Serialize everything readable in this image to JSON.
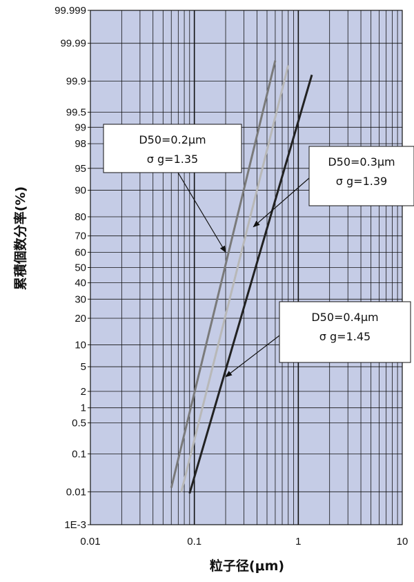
{
  "chart_data": {
    "type": "line",
    "xlabel": "粒子径(μm)",
    "ylabel": "累積個数分率(%)",
    "x_scale": "log",
    "y_scale": "log-normal probability",
    "xlim": [
      0.01,
      10
    ],
    "ylim": [
      0.001,
      99.999
    ],
    "x_ticks": [
      {
        "value": 0.01,
        "label": "0.01"
      },
      {
        "value": 0.1,
        "label": "0.1"
      },
      {
        "value": 1,
        "label": "1"
      },
      {
        "value": 10,
        "label": "10"
      }
    ],
    "y_ticks": [
      {
        "value": 0.001,
        "label": "1E-3"
      },
      {
        "value": 0.01,
        "label": "0.01"
      },
      {
        "value": 0.1,
        "label": "0.1"
      },
      {
        "value": 0.5,
        "label": "0.5"
      },
      {
        "value": 1,
        "label": "1"
      },
      {
        "value": 2,
        "label": "2"
      },
      {
        "value": 5,
        "label": "5"
      },
      {
        "value": 10,
        "label": "10"
      },
      {
        "value": 20,
        "label": "20"
      },
      {
        "value": 30,
        "label": "30"
      },
      {
        "value": 40,
        "label": "40"
      },
      {
        "value": 50,
        "label": "50"
      },
      {
        "value": 60,
        "label": "60"
      },
      {
        "value": 70,
        "label": "70"
      },
      {
        "value": 80,
        "label": "80"
      },
      {
        "value": 90,
        "label": "90"
      },
      {
        "value": 95,
        "label": "95"
      },
      {
        "value": 98,
        "label": "98"
      },
      {
        "value": 99,
        "label": "99"
      },
      {
        "value": 99.5,
        "label": "99.5"
      },
      {
        "value": 99.9,
        "label": "99.9"
      },
      {
        "value": 99.99,
        "label": "99.99"
      },
      {
        "value": 99.999,
        "label": "99.999"
      }
    ],
    "grid": true,
    "background_color": "#c5cce6",
    "series": [
      {
        "d50": 0.2,
        "sigma_g": 1.35,
        "color": "#7a7a7a",
        "points": [
          {
            "x": 0.06,
            "y": 0.013
          },
          {
            "x": 0.6,
            "y": 99.97
          }
        ],
        "label_line1": "D50=0.2μm",
        "label_line2": "σ g=1.35"
      },
      {
        "d50": 0.3,
        "sigma_g": 1.39,
        "color": "#b8b8b8",
        "points": [
          {
            "x": 0.075,
            "y": 0.01
          },
          {
            "x": 0.8,
            "y": 99.96
          }
        ],
        "label_line1": "D50=0.3μm",
        "label_line2": "σ g=1.39"
      },
      {
        "d50": 0.4,
        "sigma_g": 1.45,
        "color": "#222222",
        "points": [
          {
            "x": 0.09,
            "y": 0.009
          },
          {
            "x": 1.35,
            "y": 99.93
          }
        ],
        "label_line1": "D50=0.4μm",
        "label_line2": "σ g=1.45"
      }
    ],
    "annotations": [
      {
        "series_index": 0,
        "arrow_target": {
          "x": 0.2,
          "y": 60
        }
      },
      {
        "series_index": 1,
        "arrow_target": {
          "x": 0.37,
          "y": 75
        }
      },
      {
        "series_index": 2,
        "arrow_target": {
          "x": 0.2,
          "y": 3.5
        }
      }
    ]
  }
}
